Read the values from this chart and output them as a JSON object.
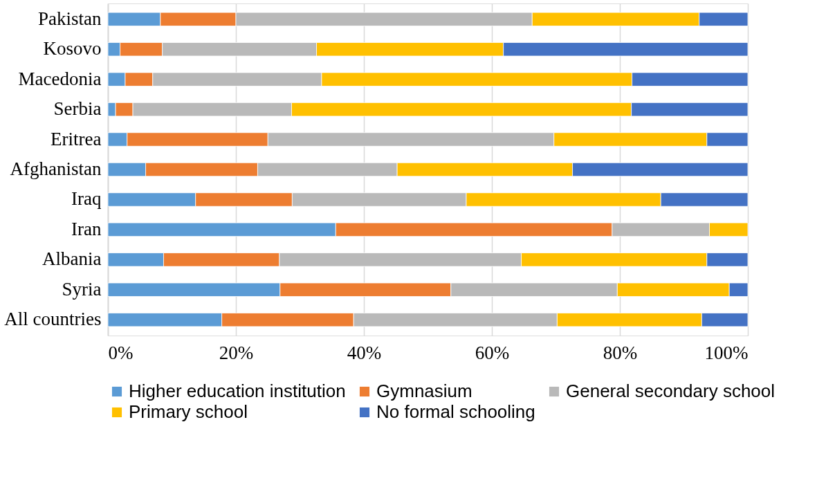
{
  "chart_data": {
    "type": "bar",
    "orientation": "horizontal",
    "stacked": true,
    "categories": [
      "Pakistan",
      "Kosovo",
      "Macedonia",
      "Serbia",
      "Eritrea",
      "Afghanistan",
      "Iraq",
      "Iran",
      "Albania",
      "Syria",
      "All countries"
    ],
    "series": [
      {
        "name": "Higher education institution",
        "color": "#5b9bd5",
        "values": [
          8.2,
          1.9,
          2.7,
          1.2,
          3.0,
          5.9,
          13.7,
          35.6,
          8.7,
          26.9,
          17.8
        ]
      },
      {
        "name": "Gymnasium",
        "color": "#ed7d31",
        "values": [
          11.8,
          6.6,
          4.3,
          2.7,
          22.0,
          17.5,
          15.1,
          43.2,
          18.1,
          26.7,
          20.6
        ]
      },
      {
        "name": "General secondary school",
        "color": "#b9b9b9",
        "values": [
          46.3,
          24.1,
          26.4,
          24.8,
          44.7,
          21.8,
          27.2,
          15.2,
          37.8,
          26.0,
          31.8
        ]
      },
      {
        "name": "Primary school",
        "color": "#ffc000",
        "values": [
          26.1,
          29.2,
          48.5,
          53.1,
          23.9,
          27.4,
          30.4,
          6.0,
          29.0,
          17.5,
          22.6
        ]
      },
      {
        "name": "No formal schooling",
        "color": "#4472c4",
        "values": [
          7.6,
          38.2,
          18.1,
          18.2,
          6.4,
          27.4,
          13.6,
          null,
          6.4,
          2.9,
          7.2
        ]
      }
    ],
    "xlim": [
      0,
      100
    ],
    "xticks": [
      {
        "value": 0,
        "label": "0%"
      },
      {
        "value": 20,
        "label": "20%"
      },
      {
        "value": 40,
        "label": "40%"
      },
      {
        "value": 60,
        "label": "60%"
      },
      {
        "value": 80,
        "label": "80%"
      },
      {
        "value": 100,
        "label": "100%"
      }
    ],
    "grid": "x",
    "legend": "bottom"
  }
}
